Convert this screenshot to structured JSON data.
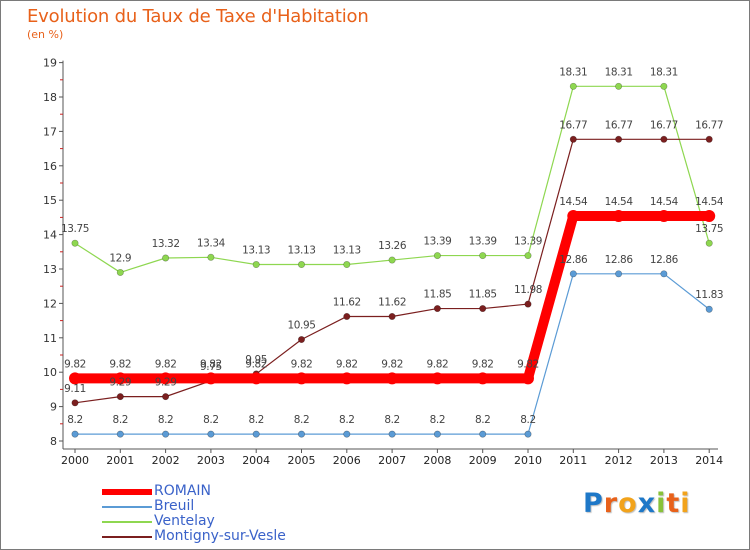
{
  "title": "Evolution du Taux de Taxe d'Habitation",
  "subtitle": "(en %)",
  "logo": {
    "text": "Proxiti",
    "letters": [
      "P",
      "r",
      "o",
      "x",
      "i",
      "t",
      "i"
    ],
    "colors": [
      "#1e78c8",
      "#e8611a",
      "#f2a31b",
      "#1e78c8",
      "#88c23a",
      "#e8611a",
      "#f2a31b"
    ]
  },
  "chart_data": {
    "type": "line",
    "title": "Evolution du Taux de Taxe d'Habitation",
    "ylabel": "(en %)",
    "xlabel": "",
    "categories": [
      "2000",
      "2001",
      "2002",
      "2003",
      "2004",
      "2005",
      "2006",
      "2007",
      "2008",
      "2009",
      "2010",
      "2011",
      "2012",
      "2013",
      "2014"
    ],
    "ylim": [
      8,
      19
    ],
    "yticks": [
      "8",
      "9",
      "10",
      "11",
      "12",
      "13",
      "14",
      "15",
      "16",
      "17",
      "18",
      "19"
    ],
    "grid": false,
    "legend_position": "bottom-left",
    "series": [
      {
        "name": "ROMAIN",
        "color": "#ff0000",
        "values": [
          9.82,
          9.82,
          9.82,
          9.82,
          9.82,
          9.82,
          9.82,
          9.82,
          9.82,
          9.82,
          9.82,
          14.54,
          14.54,
          14.54,
          14.54
        ],
        "labels": [
          "9.82",
          "9.82",
          "9.82",
          "9.82",
          "9.82",
          "9.82",
          "9.82",
          "9.82",
          "9.82",
          "9.82",
          "9.82",
          "14.54",
          "14.54",
          "14.54",
          "14.54"
        ]
      },
      {
        "name": "Breuil",
        "color": "#5b9bd5",
        "values": [
          8.2,
          8.2,
          8.2,
          8.2,
          8.2,
          8.2,
          8.2,
          8.2,
          8.2,
          8.2,
          8.2,
          12.86,
          12.86,
          12.86,
          11.83
        ],
        "labels": [
          "8.2",
          "8.2",
          "8.2",
          "8.2",
          "8.2",
          "8.2",
          "8.2",
          "8.2",
          "8.2",
          "8.2",
          "8.2",
          "12.86",
          "12.86",
          "12.86",
          "11.83"
        ]
      },
      {
        "name": "Ventelay",
        "color": "#8ed750",
        "values": [
          13.75,
          12.9,
          13.32,
          13.34,
          13.13,
          13.13,
          13.13,
          13.26,
          13.39,
          13.39,
          13.39,
          18.31,
          18.31,
          18.31,
          13.75
        ],
        "labels": [
          "13.75",
          "12.9",
          "13.32",
          "13.34",
          "13.13",
          "13.13",
          "13.13",
          "13.26",
          "13.39",
          "13.39",
          "13.39",
          "18.31",
          "18.31",
          "18.31",
          "13.75"
        ]
      },
      {
        "name": "Montigny-sur-Vesle",
        "color": "#7b1f1f",
        "values": [
          9.11,
          9.29,
          9.29,
          9.75,
          9.95,
          10.95,
          11.62,
          11.62,
          11.85,
          11.85,
          11.98,
          16.77,
          16.77,
          16.77,
          16.77
        ],
        "labels": [
          "9.11",
          "9.29",
          "9.29",
          "9.75",
          "9.95",
          "10.95",
          "11.62",
          "11.62",
          "11.85",
          "11.85",
          "11.98",
          "16.77",
          "16.77",
          "16.77",
          "16.77"
        ]
      }
    ]
  }
}
